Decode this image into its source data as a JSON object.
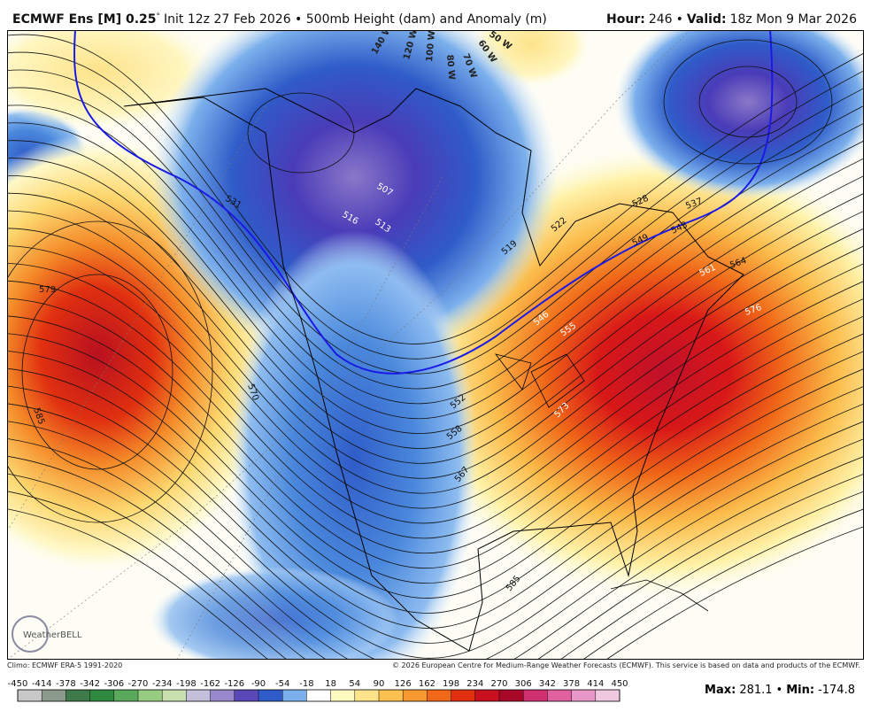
{
  "header": {
    "title_bold": "ECMWF Ens [M] 0.25",
    "title_degree": "°",
    "title_rest": "Init 12z 27 Feb 2026 • 500mb Height (dam) and Anomaly (m)",
    "hour_label": "Hour:",
    "hour": "246",
    "separator": "•",
    "valid_label": "Valid:",
    "valid": "18z Mon 9 Mar 2026"
  },
  "map": {
    "longitude_labels": [
      "140 W",
      "120 W",
      "100 W",
      "80 W",
      "70 W",
      "60 W",
      "50 W"
    ],
    "contour_labels": [
      "579",
      "585",
      "570",
      "531",
      "516",
      "513",
      "507",
      "519",
      "522",
      "528",
      "537",
      "543",
      "546",
      "549",
      "555",
      "561",
      "564",
      "576",
      "573",
      "552",
      "558",
      "567",
      "585"
    ],
    "logo": "WeatherBELL"
  },
  "footer": {
    "climo": "Climo: ECMWF ERA-5 1991-2020",
    "copyright": "© 2026 European Centre for Medium-Range Weather Forecasts (ECMWF). This service is based on data and products of the ECMWF.",
    "max_label": "Max:",
    "max": "281.1",
    "separator": "•",
    "min_label": "Min:",
    "min": "-174.8"
  },
  "colorbar": {
    "ticks": [
      -450,
      -414,
      -378,
      -342,
      -306,
      -270,
      -234,
      -198,
      -162,
      -126,
      -90,
      -54,
      -18,
      18,
      54,
      90,
      126,
      162,
      198,
      234,
      270,
      306,
      342,
      378,
      414,
      450
    ],
    "colors": [
      "#c8c8c8",
      "#8c9a8c",
      "#3f7a4a",
      "#2f8a40",
      "#5aa85a",
      "#98cc80",
      "#c8e0b0",
      "#c4c0dc",
      "#9a88cc",
      "#5a48b8",
      "#2f5cc8",
      "#7cb0ec",
      "#ffffff",
      "#fffac0",
      "#fde38a",
      "#fbc050",
      "#f89830",
      "#f06818",
      "#e03010",
      "#c81020",
      "#a80828",
      "#d03070",
      "#e060a0",
      "#e898c8",
      "#f0c8e0"
    ]
  }
}
